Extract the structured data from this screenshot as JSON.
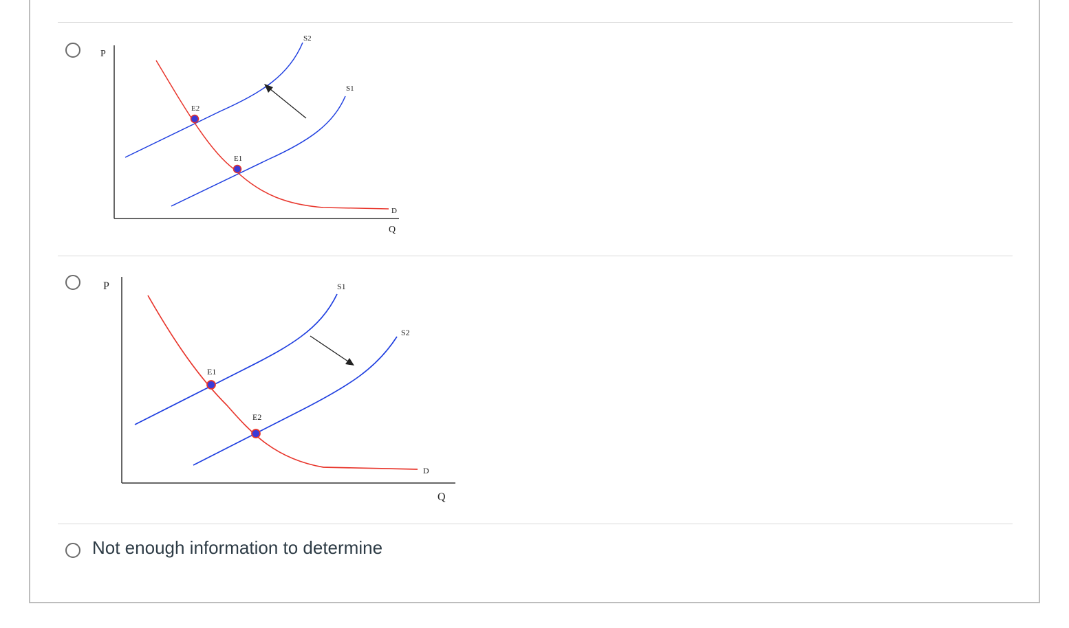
{
  "options": [
    {
      "graph": {
        "axis_y": "P",
        "axis_x": "Q",
        "curves": [
          {
            "label": "S2",
            "kind": "supply",
            "color": "#1f3fe0"
          },
          {
            "label": "S1",
            "kind": "supply",
            "color": "#1f3fe0"
          },
          {
            "label": "D",
            "kind": "demand",
            "color": "#e8352b"
          }
        ],
        "points": [
          {
            "label": "E2"
          },
          {
            "label": "E1"
          }
        ],
        "arrow": "up-left"
      }
    },
    {
      "graph": {
        "axis_y": "P",
        "axis_x": "Q",
        "curves": [
          {
            "label": "S1",
            "kind": "supply",
            "color": "#1f3fe0"
          },
          {
            "label": "S2",
            "kind": "supply",
            "color": "#1f3fe0"
          },
          {
            "label": "D",
            "kind": "demand",
            "color": "#e8352b"
          }
        ],
        "points": [
          {
            "label": "E1"
          },
          {
            "label": "E2"
          }
        ],
        "arrow": "down-right"
      }
    },
    {
      "text": "Not enough information to determine"
    }
  ]
}
